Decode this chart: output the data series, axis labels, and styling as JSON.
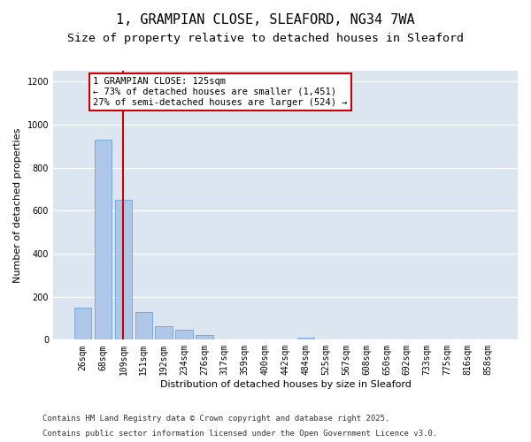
{
  "title_line1": "1, GRAMPIAN CLOSE, SLEAFORD, NG34 7WA",
  "title_line2": "Size of property relative to detached houses in Sleaford",
  "xlabel": "Distribution of detached houses by size in Sleaford",
  "ylabel": "Number of detached properties",
  "categories": [
    "26sqm",
    "68sqm",
    "109sqm",
    "151sqm",
    "192sqm",
    "234sqm",
    "276sqm",
    "317sqm",
    "359sqm",
    "400sqm",
    "442sqm",
    "484sqm",
    "525sqm",
    "567sqm",
    "608sqm",
    "650sqm",
    "692sqm",
    "733sqm",
    "775sqm",
    "816sqm",
    "858sqm"
  ],
  "values": [
    150,
    930,
    650,
    130,
    65,
    45,
    20,
    0,
    0,
    0,
    0,
    8,
    0,
    0,
    0,
    0,
    0,
    0,
    0,
    0,
    0
  ],
  "bar_color": "#aec6e8",
  "bar_edge_color": "#5b9bd5",
  "red_line_index": 2,
  "red_line_color": "#cc0000",
  "annotation_text": "1 GRAMPIAN CLOSE: 125sqm\n← 73% of detached houses are smaller (1,451)\n27% of semi-detached houses are larger (524) →",
  "annotation_box_color": "#ffffff",
  "annotation_box_edge": "#cc0000",
  "ylim": [
    0,
    1250
  ],
  "yticks": [
    0,
    200,
    400,
    600,
    800,
    1000,
    1200
  ],
  "background_color": "#dce6f0",
  "grid_color": "#ffffff",
  "fig_background": "#ffffff",
  "footer_line1": "Contains HM Land Registry data © Crown copyright and database right 2025.",
  "footer_line2": "Contains public sector information licensed under the Open Government Licence v3.0.",
  "title_fontsize": 11,
  "subtitle_fontsize": 9.5,
  "axis_label_fontsize": 8,
  "tick_fontsize": 7,
  "annotation_fontsize": 7.5,
  "footer_fontsize": 6.5
}
